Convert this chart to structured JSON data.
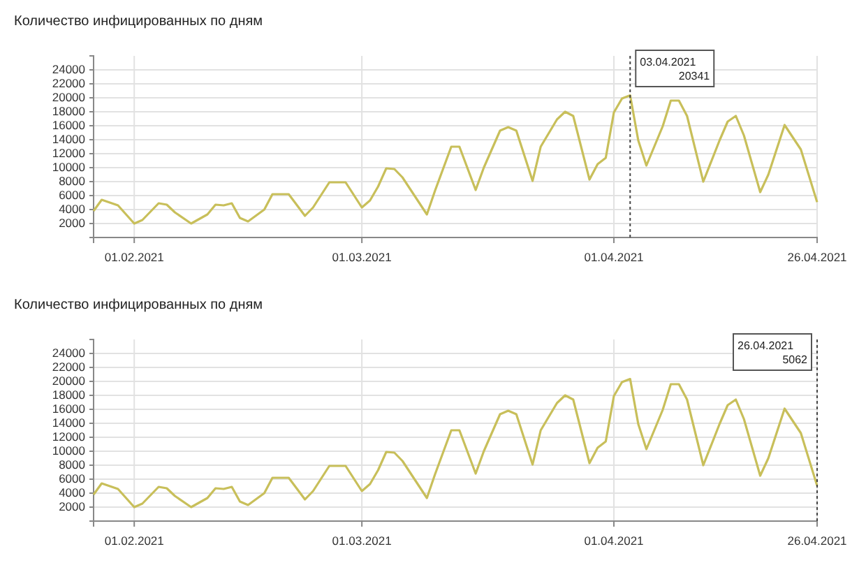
{
  "chart_data": [
    {
      "type": "line",
      "title": "Количество инфицированных по дням",
      "x": [
        "2021-01-27",
        "2021-01-28",
        "2021-01-30",
        "2021-02-01",
        "2021-02-02",
        "2021-02-04",
        "2021-02-05",
        "2021-02-06",
        "2021-02-08",
        "2021-02-10",
        "2021-02-11",
        "2021-02-12",
        "2021-02-13",
        "2021-02-14",
        "2021-02-15",
        "2021-02-17",
        "2021-02-18",
        "2021-02-20",
        "2021-02-22",
        "2021-02-23",
        "2021-02-25",
        "2021-02-27",
        "2021-03-01",
        "2021-03-02",
        "2021-03-03",
        "2021-03-04",
        "2021-03-05",
        "2021-03-06",
        "2021-03-09",
        "2021-03-10",
        "2021-03-12",
        "2021-03-13",
        "2021-03-15",
        "2021-03-16",
        "2021-03-18",
        "2021-03-19",
        "2021-03-20",
        "2021-03-22",
        "2021-03-23",
        "2021-03-25",
        "2021-03-26",
        "2021-03-27",
        "2021-03-29",
        "2021-03-30",
        "2021-03-31",
        "2021-04-01",
        "2021-04-02",
        "2021-04-03",
        "2021-04-04",
        "2021-04-05",
        "2021-04-07",
        "2021-04-08",
        "2021-04-09",
        "2021-04-10",
        "2021-04-12",
        "2021-04-14",
        "2021-04-15",
        "2021-04-16",
        "2021-04-17",
        "2021-04-19",
        "2021-04-20",
        "2021-04-22",
        "2021-04-24",
        "2021-04-26"
      ],
      "series": [
        {
          "color": "#c8bf5a",
          "values": [
            3800,
            5400,
            4600,
            2000,
            2500,
            4900,
            4700,
            3600,
            2000,
            3300,
            4700,
            4600,
            4900,
            2800,
            2300,
            4000,
            6200,
            6200,
            3100,
            4300,
            7900,
            7900,
            4300,
            5300,
            7300,
            9900,
            9800,
            8600,
            3300,
            6700,
            13000,
            13000,
            6800,
            10000,
            15300,
            15800,
            15300,
            8100,
            13000,
            16900,
            18000,
            17400,
            8300,
            10500,
            11400,
            17900,
            19900,
            20341,
            13900,
            10300,
            15900,
            19600,
            19600,
            17400,
            8000,
            13900,
            16600,
            17400,
            14600,
            6500,
            9000,
            16100,
            12600,
            5062
          ]
        }
      ],
      "xlim": [
        "2021-01-27",
        "2021-04-26"
      ],
      "xticks": [
        {
          "value": "2021-02-01",
          "label": "01.02.2021"
        },
        {
          "value": "2021-03-01",
          "label": "01.03.2021"
        },
        {
          "value": "2021-04-01",
          "label": "01.04.2021"
        },
        {
          "value": "2021-04-26",
          "label": "26.04.2021"
        }
      ],
      "ylim": [
        0,
        26000
      ],
      "yticks": [
        2000,
        4000,
        6000,
        8000,
        10000,
        12000,
        14000,
        16000,
        18000,
        20000,
        22000,
        24000
      ],
      "grid": true,
      "marker": "none",
      "line_style": "solid",
      "ref_lines": [
        {
          "axis": "x",
          "value": "2021-04-03",
          "line_style": "dotted",
          "color": "#444444"
        }
      ],
      "annotations": [
        "03.04.2021\n20341"
      ]
    },
    {
      "type": "line",
      "title": "Количество инфицированных по дням",
      "x": [
        "2021-01-27",
        "2021-01-28",
        "2021-01-30",
        "2021-02-01",
        "2021-02-02",
        "2021-02-04",
        "2021-02-05",
        "2021-02-06",
        "2021-02-08",
        "2021-02-10",
        "2021-02-11",
        "2021-02-12",
        "2021-02-13",
        "2021-02-14",
        "2021-02-15",
        "2021-02-17",
        "2021-02-18",
        "2021-02-20",
        "2021-02-22",
        "2021-02-23",
        "2021-02-25",
        "2021-02-27",
        "2021-03-01",
        "2021-03-02",
        "2021-03-03",
        "2021-03-04",
        "2021-03-05",
        "2021-03-06",
        "2021-03-09",
        "2021-03-10",
        "2021-03-12",
        "2021-03-13",
        "2021-03-15",
        "2021-03-16",
        "2021-03-18",
        "2021-03-19",
        "2021-03-20",
        "2021-03-22",
        "2021-03-23",
        "2021-03-25",
        "2021-03-26",
        "2021-03-27",
        "2021-03-29",
        "2021-03-30",
        "2021-03-31",
        "2021-04-01",
        "2021-04-02",
        "2021-04-03",
        "2021-04-04",
        "2021-04-05",
        "2021-04-07",
        "2021-04-08",
        "2021-04-09",
        "2021-04-10",
        "2021-04-12",
        "2021-04-14",
        "2021-04-15",
        "2021-04-16",
        "2021-04-17",
        "2021-04-19",
        "2021-04-20",
        "2021-04-22",
        "2021-04-24",
        "2021-04-26"
      ],
      "series": [
        {
          "color": "#c8bf5a",
          "values": [
            3800,
            5400,
            4600,
            2000,
            2500,
            4900,
            4700,
            3600,
            2000,
            3300,
            4700,
            4600,
            4900,
            2800,
            2300,
            4000,
            6200,
            6200,
            3100,
            4300,
            7900,
            7900,
            4300,
            5300,
            7300,
            9900,
            9800,
            8600,
            3300,
            6700,
            13000,
            13000,
            6800,
            10000,
            15300,
            15800,
            15300,
            8100,
            13000,
            16900,
            18000,
            17400,
            8300,
            10500,
            11400,
            17900,
            19900,
            20341,
            13900,
            10300,
            15900,
            19600,
            19600,
            17400,
            8000,
            13900,
            16600,
            17400,
            14600,
            6500,
            9000,
            16100,
            12600,
            5062
          ]
        }
      ],
      "xlim": [
        "2021-01-27",
        "2021-04-26"
      ],
      "xticks": [
        {
          "value": "2021-02-01",
          "label": "01.02.2021"
        },
        {
          "value": "2021-03-01",
          "label": "01.03.2021"
        },
        {
          "value": "2021-04-01",
          "label": "01.04.2021"
        },
        {
          "value": "2021-04-26",
          "label": "26.04.2021"
        }
      ],
      "ylim": [
        0,
        26000
      ],
      "yticks": [
        2000,
        4000,
        6000,
        8000,
        10000,
        12000,
        14000,
        16000,
        18000,
        20000,
        22000,
        24000
      ],
      "grid": true,
      "marker": "none",
      "line_style": "solid",
      "ref_lines": [
        {
          "axis": "x",
          "value": "2021-04-26",
          "line_style": "dotted",
          "color": "#444444"
        }
      ],
      "annotations": [
        "26.04.2021\n5062"
      ]
    }
  ]
}
